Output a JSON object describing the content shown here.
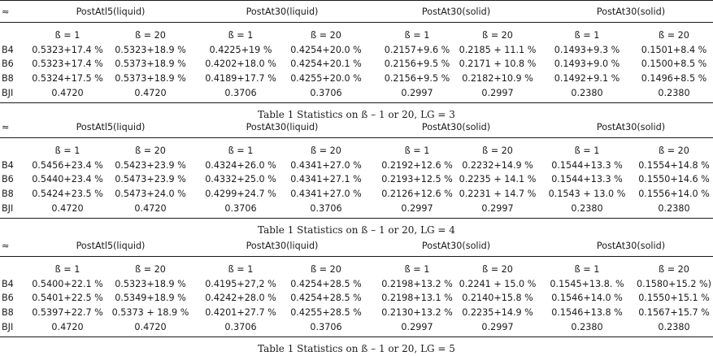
{
  "tables": [
    {
      "corner": "≈",
      "groups": [
        "PostAtl5(liquid)",
        "PostAt30(liquid)",
        "PostAt30(solid)",
        "PostAt30(solid)"
      ],
      "subheaders": [
        "ß = 1",
        "ß = 20",
        "ß = 1",
        "ß = 20",
        "ß = 1",
        "ß = 20",
        "ß = 1",
        "ß = 20"
      ],
      "rows": [
        {
          "label": "B4",
          "cells": [
            "0.5323+17.4 %",
            "0.5323+18.9 %",
            "0.4225+19 %",
            "0.4254+20.0 %",
            "0.2157+9.6 %",
            "0.2185 + 11.1 %",
            "0.1493+9.3 %",
            "0.1501+8.4 %"
          ]
        },
        {
          "label": "B6",
          "cells": [
            "0.5323+17.4 %",
            "0.5373+18.9 %",
            "0.4202+18.0 %",
            "0.4254+20.1 %",
            "0.2156+9.5 %",
            "0.2171 + 10.8 %",
            "0.1493+9.0 %",
            "0.1500+8.5 %"
          ]
        },
        {
          "label": "B8",
          "cells": [
            "0.5324+17.5 %",
            "0.5373+18.9 %",
            "0.4189+17.7 %",
            "0.4255+20.0 %",
            "0.2156+9.5 %",
            "0.2182+10.9 %",
            "0.1492+9.1 %",
            "0.1496+8.5 %"
          ]
        },
        {
          "label": "BJI",
          "cells": [
            "0.4720",
            "0.4720",
            "0.3706",
            "0.3706",
            "0.2997",
            "0.2997",
            "0.2380",
            "0.2380"
          ]
        }
      ],
      "caption": "Table 1 Statistics on ß – 1 or 20, LG = 3"
    },
    {
      "corner": "≈",
      "groups": [
        "PostAtl5(liquid)",
        "PostAt30(liquid)",
        "PostAt30(solid)",
        "PostAt30(solid)"
      ],
      "subheaders": [
        "ß = 1",
        "ß = 20",
        "ß = 1",
        "ß = 20",
        "ß = 1",
        "ß = 20",
        "ß = 1",
        "ß = 20"
      ],
      "rows": [
        {
          "label": "B4",
          "cells": [
            "0.5456+23.4 %",
            "0.5423+23.9 %",
            "0.4324+26.0 %",
            "0.4341+27.0 %",
            "0.2192+12.6 %",
            "0.2232+14.9 %",
            "0.1544+13.3 %",
            "0.1554+14.8 %"
          ]
        },
        {
          "label": "B6",
          "cells": [
            "0.5440+23.4 %",
            "0.5473+23.9 %",
            "0.4332+25.0 %",
            "0.4341+27.1 %",
            "0.2193+12.5 %",
            "0.2235 + 14.1 %",
            "0.1544+13.3 %",
            "0.1550+14.6 %"
          ]
        },
        {
          "label": "B8",
          "cells": [
            "0.5424+23.5 %",
            "0.5473+24.0 %",
            "0.4299+24.7 %",
            "0.4341+27.0 %",
            "0.2126+12.6 %",
            "0.2231 + 14.7 %",
            "0.1543 + 13.0 %",
            "0.1556+14.0 %"
          ]
        },
        {
          "label": "BJI",
          "cells": [
            "0.4720",
            "0.4720",
            "0.3706",
            "0.3706",
            "0.2997",
            "0.2997",
            "0.2380",
            "0.2380"
          ]
        }
      ],
      "caption": "Table 1 Statistics on ß – 1 or 20, LG = 4"
    },
    {
      "corner": "≈",
      "groups": [
        "PostAtl5(liquid)",
        "PostAt30(liquid)",
        "PostAt30(solid)",
        "PostAt30(solid)"
      ],
      "subheaders": [
        "ß = 1",
        "ß = 20",
        "ß = 1",
        "ß = 20",
        "ß = 1",
        "ß = 20",
        "ß = 1",
        "ß = 20"
      ],
      "rows": [
        {
          "label": "B4",
          "cells": [
            "0.5400+22.1 %",
            "0.5323+18.9 %",
            "0.4195+27,2 %",
            "0.4254+28.5 %",
            "0.2198+13.2 %",
            "0.2241 + 15.0 %",
            "0.1545+13.8. %",
            "0.1580+15.2 %)"
          ]
        },
        {
          "label": "B6",
          "cells": [
            "0.5401+22.5 %",
            "0.5349+18.9 %",
            "0.4242+28.0 %",
            "0.4254+28.5 %",
            "0.2198+13.1 %",
            "0.2140+15.8 %",
            "0.1546+14.0 %",
            "0.1550+15.1 %"
          ]
        },
        {
          "label": "B8",
          "cells": [
            "0.5397+22.7 %",
            "0.5373 + 18.9 %",
            "0.4201+27.7 %",
            "0.4255+28.5 %",
            "0.2130+13.2 %",
            "0.2235+14.9 %",
            "0.1546+13.8 %",
            "0.1567+15.7 %"
          ]
        },
        {
          "label": "BJI",
          "cells": [
            "0.4720",
            "0.4720",
            "0.3706",
            "0.3706",
            "0.2997",
            "0.2997",
            "0.2380",
            "0.2380"
          ]
        }
      ],
      "caption": "Table 1 Statistics on ß – 1 or 20, LG = 5"
    }
  ]
}
